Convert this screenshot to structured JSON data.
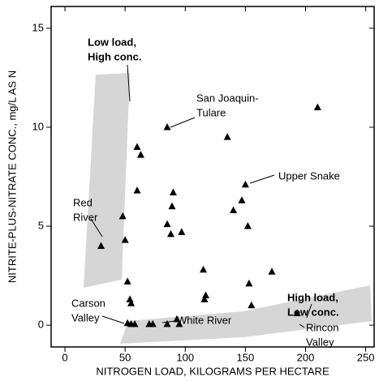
{
  "chart_data": {
    "type": "scatter",
    "xlabel": "NITROGEN LOAD, KILOGRAMS PER HECTARE",
    "ylabel": "NITRITE-PLUS-NITRATE CONC., mg/L AS N",
    "xlim": [
      -11.5,
      257
    ],
    "xticks": [
      0,
      50,
      100,
      150,
      200,
      250
    ],
    "ylim": [
      -1.1,
      16.1
    ],
    "yticks": [
      0,
      5,
      10,
      15
    ],
    "color": "#000000",
    "x": [
      30,
      48,
      50,
      52,
      54,
      55,
      52,
      55,
      58,
      60,
      63,
      60,
      85,
      90,
      89,
      85,
      88,
      97,
      70,
      73,
      85,
      93,
      95,
      115,
      117,
      116,
      135,
      140,
      147,
      150,
      152,
      153,
      155,
      172,
      193,
      210
    ],
    "y": [
      4.0,
      5.5,
      4.3,
      2.2,
      1.3,
      1.1,
      0.1,
      0.05,
      0.05,
      9.0,
      8.6,
      6.8,
      10.0,
      6.7,
      6.0,
      5.1,
      4.6,
      4.7,
      0.05,
      0.05,
      0.05,
      0.3,
      0.05,
      2.8,
      1.5,
      1.3,
      9.5,
      5.8,
      6.3,
      7.1,
      5.0,
      2.1,
      1.0,
      2.7,
      0.6,
      11.0
    ],
    "annotations": [
      {
        "lines": [
          "Low load,",
          "High conc."
        ]
      },
      {
        "lines": [
          "San Joaquin-",
          "Tulare"
        ]
      },
      {
        "lines": [
          "Upper Snake"
        ]
      },
      {
        "lines": [
          "Red",
          "River"
        ]
      },
      {
        "lines": [
          "High load,",
          "Low conc."
        ]
      },
      {
        "lines": [
          "Rincon",
          "Valley"
        ]
      },
      {
        "lines": [
          "Carson",
          "Valley"
        ]
      },
      {
        "lines": [
          "White River"
        ]
      }
    ]
  }
}
